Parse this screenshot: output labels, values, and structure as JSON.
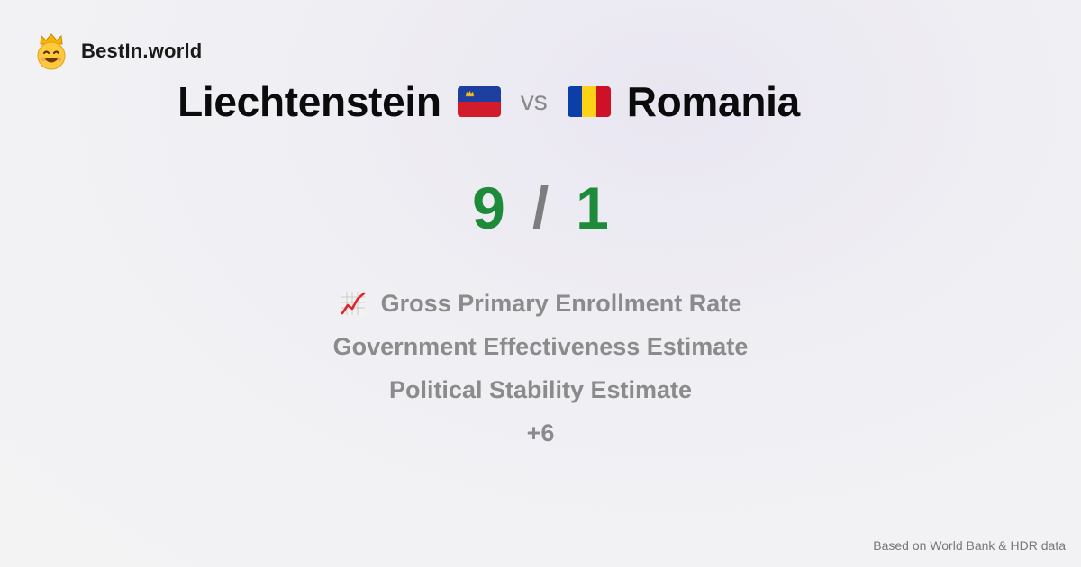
{
  "brand": {
    "name": "BestIn.world",
    "logo_icon": "smiling-crown-face-icon"
  },
  "comparison": {
    "left": {
      "name": "Liechtenstein",
      "flag_icon": "liechtenstein-flag-icon"
    },
    "vs_label": "vs",
    "right": {
      "name": "Romania",
      "flag_icon": "romania-flag-icon"
    }
  },
  "score": {
    "left": "9",
    "separator": "/",
    "right": "1",
    "color": "#1e8b3a"
  },
  "metrics": {
    "items": [
      {
        "label": "Gross Primary Enrollment Rate",
        "icon": "chart-increasing-icon"
      },
      {
        "label": "Government Effectiveness Estimate"
      },
      {
        "label": "Political Stability Estimate"
      }
    ],
    "more": "+6"
  },
  "footer": {
    "source": "Based on World Bank & HDR data"
  }
}
